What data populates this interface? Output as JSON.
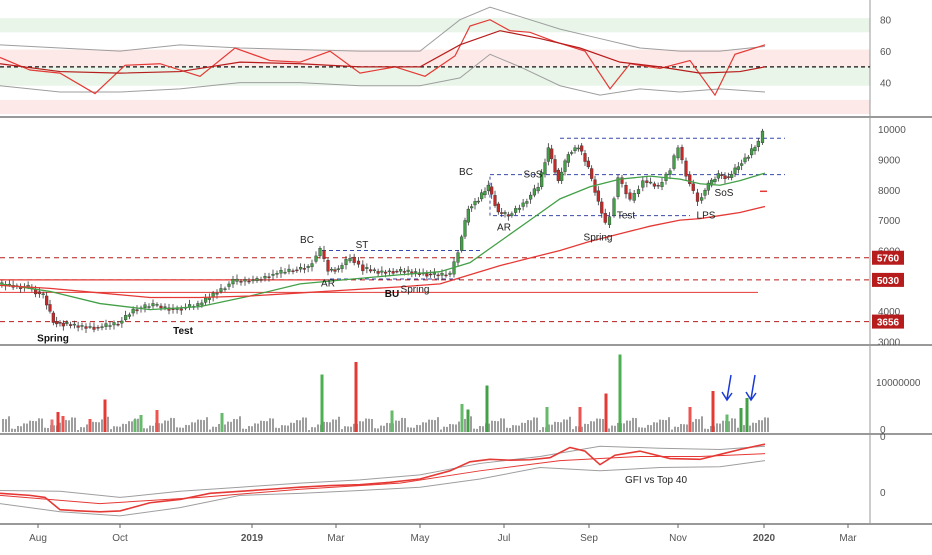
{
  "chart_data": [
    {
      "panel": "rsi",
      "type": "line",
      "y_ticks": [
        40,
        60,
        80
      ],
      "ylim": [
        20,
        90
      ],
      "midline": 50,
      "zones": [
        {
          "from": 72,
          "to": 81,
          "color": "#4caf50"
        },
        {
          "from": 38,
          "to": 50,
          "color": "#4caf50"
        },
        {
          "from": 50,
          "to": 61,
          "color": "#ef5350"
        },
        {
          "from": 20,
          "to": 29,
          "color": "#ef5350"
        }
      ],
      "series": [
        {
          "color": "#e53935",
          "x": [
            0,
            30,
            60,
            95,
            125,
            160,
            200,
            235,
            270,
            300,
            330,
            360,
            395,
            425,
            455,
            470,
            490,
            510,
            530,
            555,
            585,
            610,
            630,
            660,
            690,
            715,
            735,
            765
          ],
          "values": [
            56,
            48,
            46,
            33,
            51,
            52,
            44,
            62,
            54,
            53,
            60,
            46,
            50,
            44,
            57,
            76,
            80,
            73,
            72,
            66,
            60,
            36,
            52,
            49,
            54,
            32,
            58,
            64
          ]
        },
        {
          "color": "#b71c1c",
          "x": [
            0,
            60,
            120,
            180,
            240,
            300,
            360,
            420,
            460,
            500,
            540,
            580,
            620,
            660,
            700,
            740,
            765
          ],
          "values": [
            52,
            47,
            46,
            47,
            53,
            52,
            50,
            50,
            64,
            73,
            68,
            62,
            53,
            50,
            46,
            47,
            50
          ]
        }
      ],
      "bands": {
        "color": "#9e9e9e",
        "x": [
          0,
          60,
          120,
          180,
          240,
          300,
          360,
          420,
          460,
          490,
          520,
          560,
          600,
          640,
          680,
          720,
          765
        ],
        "upper": [
          64,
          62,
          60,
          64,
          62,
          61,
          60,
          60,
          80,
          88,
          82,
          74,
          68,
          62,
          60,
          60,
          63
        ],
        "lower": [
          38,
          34,
          34,
          36,
          40,
          40,
          38,
          38,
          43,
          58,
          50,
          38,
          32,
          36,
          34,
          36,
          34
        ]
      }
    },
    {
      "panel": "price",
      "type": "line",
      "y_ticks": [
        3000,
        4000,
        5000,
        6000,
        7000,
        8000,
        9000,
        10000
      ],
      "ylim": [
        2950,
        10300
      ],
      "levels": [
        {
          "label": "5760",
          "value": 5760
        },
        {
          "label": "5030",
          "value": 5030
        },
        {
          "label": "3656",
          "value": 3656
        }
      ],
      "series": [
        {
          "color": "#1e1e1e",
          "x": [
            0,
            30,
            45,
            55,
            65,
            80,
            100,
            120,
            135,
            155,
            175,
            200,
            215,
            235,
            255,
            275,
            295,
            310,
            322,
            330,
            340,
            352,
            365,
            380,
            395,
            410,
            425,
            440,
            452,
            460,
            470,
            480,
            490,
            500,
            510,
            525,
            540,
            550,
            560,
            570,
            580,
            590,
            600,
            607,
            612,
            620,
            632,
            645,
            660,
            672,
            680,
            688,
            695,
            700,
            710,
            720,
            730,
            740,
            750,
            760,
            765
          ],
          "values": [
            4900,
            4780,
            4500,
            3660,
            3580,
            3500,
            3460,
            3600,
            4050,
            4200,
            4050,
            4200,
            4560,
            4980,
            5000,
            5220,
            5360,
            5460,
            6000,
            5350,
            5400,
            5780,
            5400,
            5280,
            5320,
            5300,
            5240,
            5180,
            5220,
            6000,
            7400,
            7700,
            8100,
            7250,
            7150,
            7550,
            8100,
            9350,
            8300,
            9200,
            9450,
            8700,
            7600,
            6850,
            7150,
            8400,
            7650,
            8300,
            8100,
            8700,
            9400,
            8500,
            7900,
            7650,
            8150,
            8500,
            8400,
            8800,
            9150,
            9550,
            9900
          ]
        },
        {
          "color": "#43a047",
          "x": [
            0,
            50,
            100,
            150,
            200,
            250,
            300,
            350,
            400,
            440,
            470,
            500,
            530,
            560,
            590,
            620,
            650,
            680,
            700,
            720,
            740,
            765
          ],
          "values": [
            4900,
            4650,
            4250,
            4050,
            4150,
            4500,
            4900,
            5050,
            5200,
            5300,
            5600,
            6300,
            7000,
            7700,
            8100,
            8350,
            8450,
            8350,
            8200,
            8150,
            8300,
            8550
          ]
        },
        {
          "color": "#e53935",
          "x": [
            0,
            50,
            100,
            150,
            200,
            250,
            300,
            350,
            400,
            440,
            470,
            500,
            530,
            560,
            590,
            620,
            650,
            680,
            700,
            720,
            740,
            765
          ],
          "values": [
            4850,
            4750,
            4600,
            4450,
            4450,
            4500,
            4600,
            4700,
            4800,
            4900,
            5200,
            5500,
            5750,
            6000,
            6300,
            6550,
            6800,
            7000,
            7050,
            7150,
            7250,
            7450
          ]
        }
      ],
      "annotations": [
        {
          "text": "Spring",
          "x": 53,
          "value": 3000,
          "bold": true
        },
        {
          "text": "Test",
          "x": 183,
          "value": 3250,
          "bold": true
        },
        {
          "text": "BC",
          "x": 307,
          "value": 6250,
          "bold": false
        },
        {
          "text": "ST",
          "x": 362,
          "value": 6080,
          "bold": false
        },
        {
          "text": "AR",
          "x": 328,
          "value": 4820,
          "bold": false
        },
        {
          "text": "BU",
          "x": 392,
          "value": 4460,
          "bold": true
        },
        {
          "text": "Spring",
          "x": 415,
          "value": 4620,
          "bold": false
        },
        {
          "text": "BC",
          "x": 466,
          "value": 8480,
          "bold": false
        },
        {
          "text": "AR",
          "x": 504,
          "value": 6660,
          "bold": false
        },
        {
          "text": "SoS",
          "x": 533,
          "value": 8400,
          "bold": false
        },
        {
          "text": "Spring",
          "x": 598,
          "value": 6330,
          "bold": false
        },
        {
          "text": "Test",
          "x": 626,
          "value": 7050,
          "bold": false
        },
        {
          "text": "SoS",
          "x": 724,
          "value": 7790,
          "bold": false
        },
        {
          "text": "LPS",
          "x": 706,
          "value": 7060,
          "bold": false
        }
      ],
      "guides": [
        {
          "x1": 322,
          "x2": 483,
          "value": 6000
        },
        {
          "x1": 490,
          "x2": 785,
          "value": 8500
        },
        {
          "x1": 560,
          "x2": 785,
          "value": 9700
        },
        {
          "x1": 493,
          "x2": 690,
          "value": 7150
        },
        {
          "x1": 330,
          "x2": 460,
          "value": 5060
        }
      ],
      "guide_vertical": {
        "x": 490,
        "from": 7150,
        "to": 8500
      }
    },
    {
      "panel": "volume",
      "type": "bar",
      "y_ticks": [
        "0",
        "10000000"
      ],
      "ylim": [
        0,
        17000000
      ],
      "bars": [
        {
          "x": 52,
          "value": 2500000,
          "color": "#e57373"
        },
        {
          "x": 58,
          "value": 4000000,
          "color": "#e53935"
        },
        {
          "x": 63,
          "value": 3200000,
          "color": "#ef5350"
        },
        {
          "x": 90,
          "value": 2600000,
          "color": "#ef5350"
        },
        {
          "x": 105,
          "value": 6500000,
          "color": "#e53935"
        },
        {
          "x": 135,
          "value": 2500000,
          "color": "#66bb6a"
        },
        {
          "x": 141,
          "value": 3400000,
          "color": "#66bb6a"
        },
        {
          "x": 157,
          "value": 4400000,
          "color": "#ef5350"
        },
        {
          "x": 222,
          "value": 3800000,
          "color": "#66bb6a"
        },
        {
          "x": 322,
          "value": 11500000,
          "color": "#4caf50"
        },
        {
          "x": 356,
          "value": 14000000,
          "color": "#e53935"
        },
        {
          "x": 392,
          "value": 4300000,
          "color": "#66bb6a"
        },
        {
          "x": 462,
          "value": 5600000,
          "color": "#66bb6a"
        },
        {
          "x": 468,
          "value": 4500000,
          "color": "#43a047"
        },
        {
          "x": 487,
          "value": 9300000,
          "color": "#43a047"
        },
        {
          "x": 547,
          "value": 5000000,
          "color": "#66bb6a"
        },
        {
          "x": 580,
          "value": 5000000,
          "color": "#ef5350"
        },
        {
          "x": 606,
          "value": 7700000,
          "color": "#e53935"
        },
        {
          "x": 620,
          "value": 15500000,
          "color": "#4caf50"
        },
        {
          "x": 690,
          "value": 5000000,
          "color": "#ef5350"
        },
        {
          "x": 713,
          "value": 8200000,
          "color": "#e53935"
        },
        {
          "x": 727,
          "value": 3500000,
          "color": "#66bb6a"
        },
        {
          "x": 741,
          "value": 4800000,
          "color": "#43a047"
        },
        {
          "x": 747,
          "value": 6800000,
          "color": "#43a047"
        }
      ],
      "arrows": [
        {
          "x": 727
        },
        {
          "x": 751
        }
      ]
    },
    {
      "panel": "relative_strength",
      "type": "line",
      "label": "GFI vs Top 40",
      "y_ticks": [
        "0",
        "0"
      ],
      "series": [
        {
          "color": "#e53935",
          "x": [
            0,
            30,
            45,
            60,
            80,
            100,
            120,
            150,
            180,
            210,
            240,
            270,
            300,
            330,
            360,
            390,
            420,
            450,
            470,
            490,
            510,
            530,
            550,
            570,
            585,
            600,
            615,
            640,
            670,
            700,
            720,
            740,
            765
          ],
          "values": [
            0.15,
            0.1,
            0.05,
            -0.25,
            -0.28,
            -0.3,
            -0.28,
            -0.08,
            0.0,
            0.15,
            0.2,
            0.25,
            0.3,
            0.34,
            0.36,
            0.42,
            0.5,
            0.7,
            0.92,
            0.98,
            0.96,
            0.97,
            1.02,
            1.27,
            1.18,
            0.85,
            1.08,
            1.18,
            1.0,
            0.98,
            1.1,
            1.22,
            1.35
          ]
        },
        {
          "color": "#e53935",
          "x": [
            0,
            100,
            200,
            300,
            400,
            480,
            560,
            640,
            700,
            765
          ],
          "values": [
            0.1,
            -0.1,
            0.05,
            0.25,
            0.4,
            0.7,
            0.95,
            1.05,
            1.05,
            1.12
          ]
        }
      ],
      "bands": {
        "color": "#9e9e9e",
        "x": [
          0,
          60,
          120,
          180,
          240,
          300,
          360,
          420,
          480,
          540,
          600,
          660,
          720,
          765
        ],
        "upper": [
          0.22,
          0.2,
          0.05,
          0.2,
          0.3,
          0.4,
          0.48,
          0.6,
          0.88,
          1.05,
          1.3,
          1.25,
          1.22,
          1.3
        ],
        "lower": [
          -0.1,
          -0.3,
          -0.4,
          -0.2,
          0.1,
          0.15,
          0.22,
          0.3,
          0.5,
          0.78,
          0.7,
          0.78,
          0.8,
          0.95
        ]
      }
    }
  ],
  "x_axis": {
    "ticks": [
      {
        "label": "Aug",
        "x": 38,
        "bold": false
      },
      {
        "label": "Oct",
        "x": 120,
        "bold": false
      },
      {
        "label": "2019",
        "x": 252,
        "bold": true
      },
      {
        "label": "Mar",
        "x": 336,
        "bold": false
      },
      {
        "label": "May",
        "x": 420,
        "bold": false
      },
      {
        "label": "Jul",
        "x": 504,
        "bold": false
      },
      {
        "label": "Sep",
        "x": 589,
        "bold": false
      },
      {
        "label": "Nov",
        "x": 678,
        "bold": false
      },
      {
        "label": "2020",
        "x": 764,
        "bold": true
      },
      {
        "label": "Mar",
        "x": 848,
        "bold": false
      }
    ]
  }
}
